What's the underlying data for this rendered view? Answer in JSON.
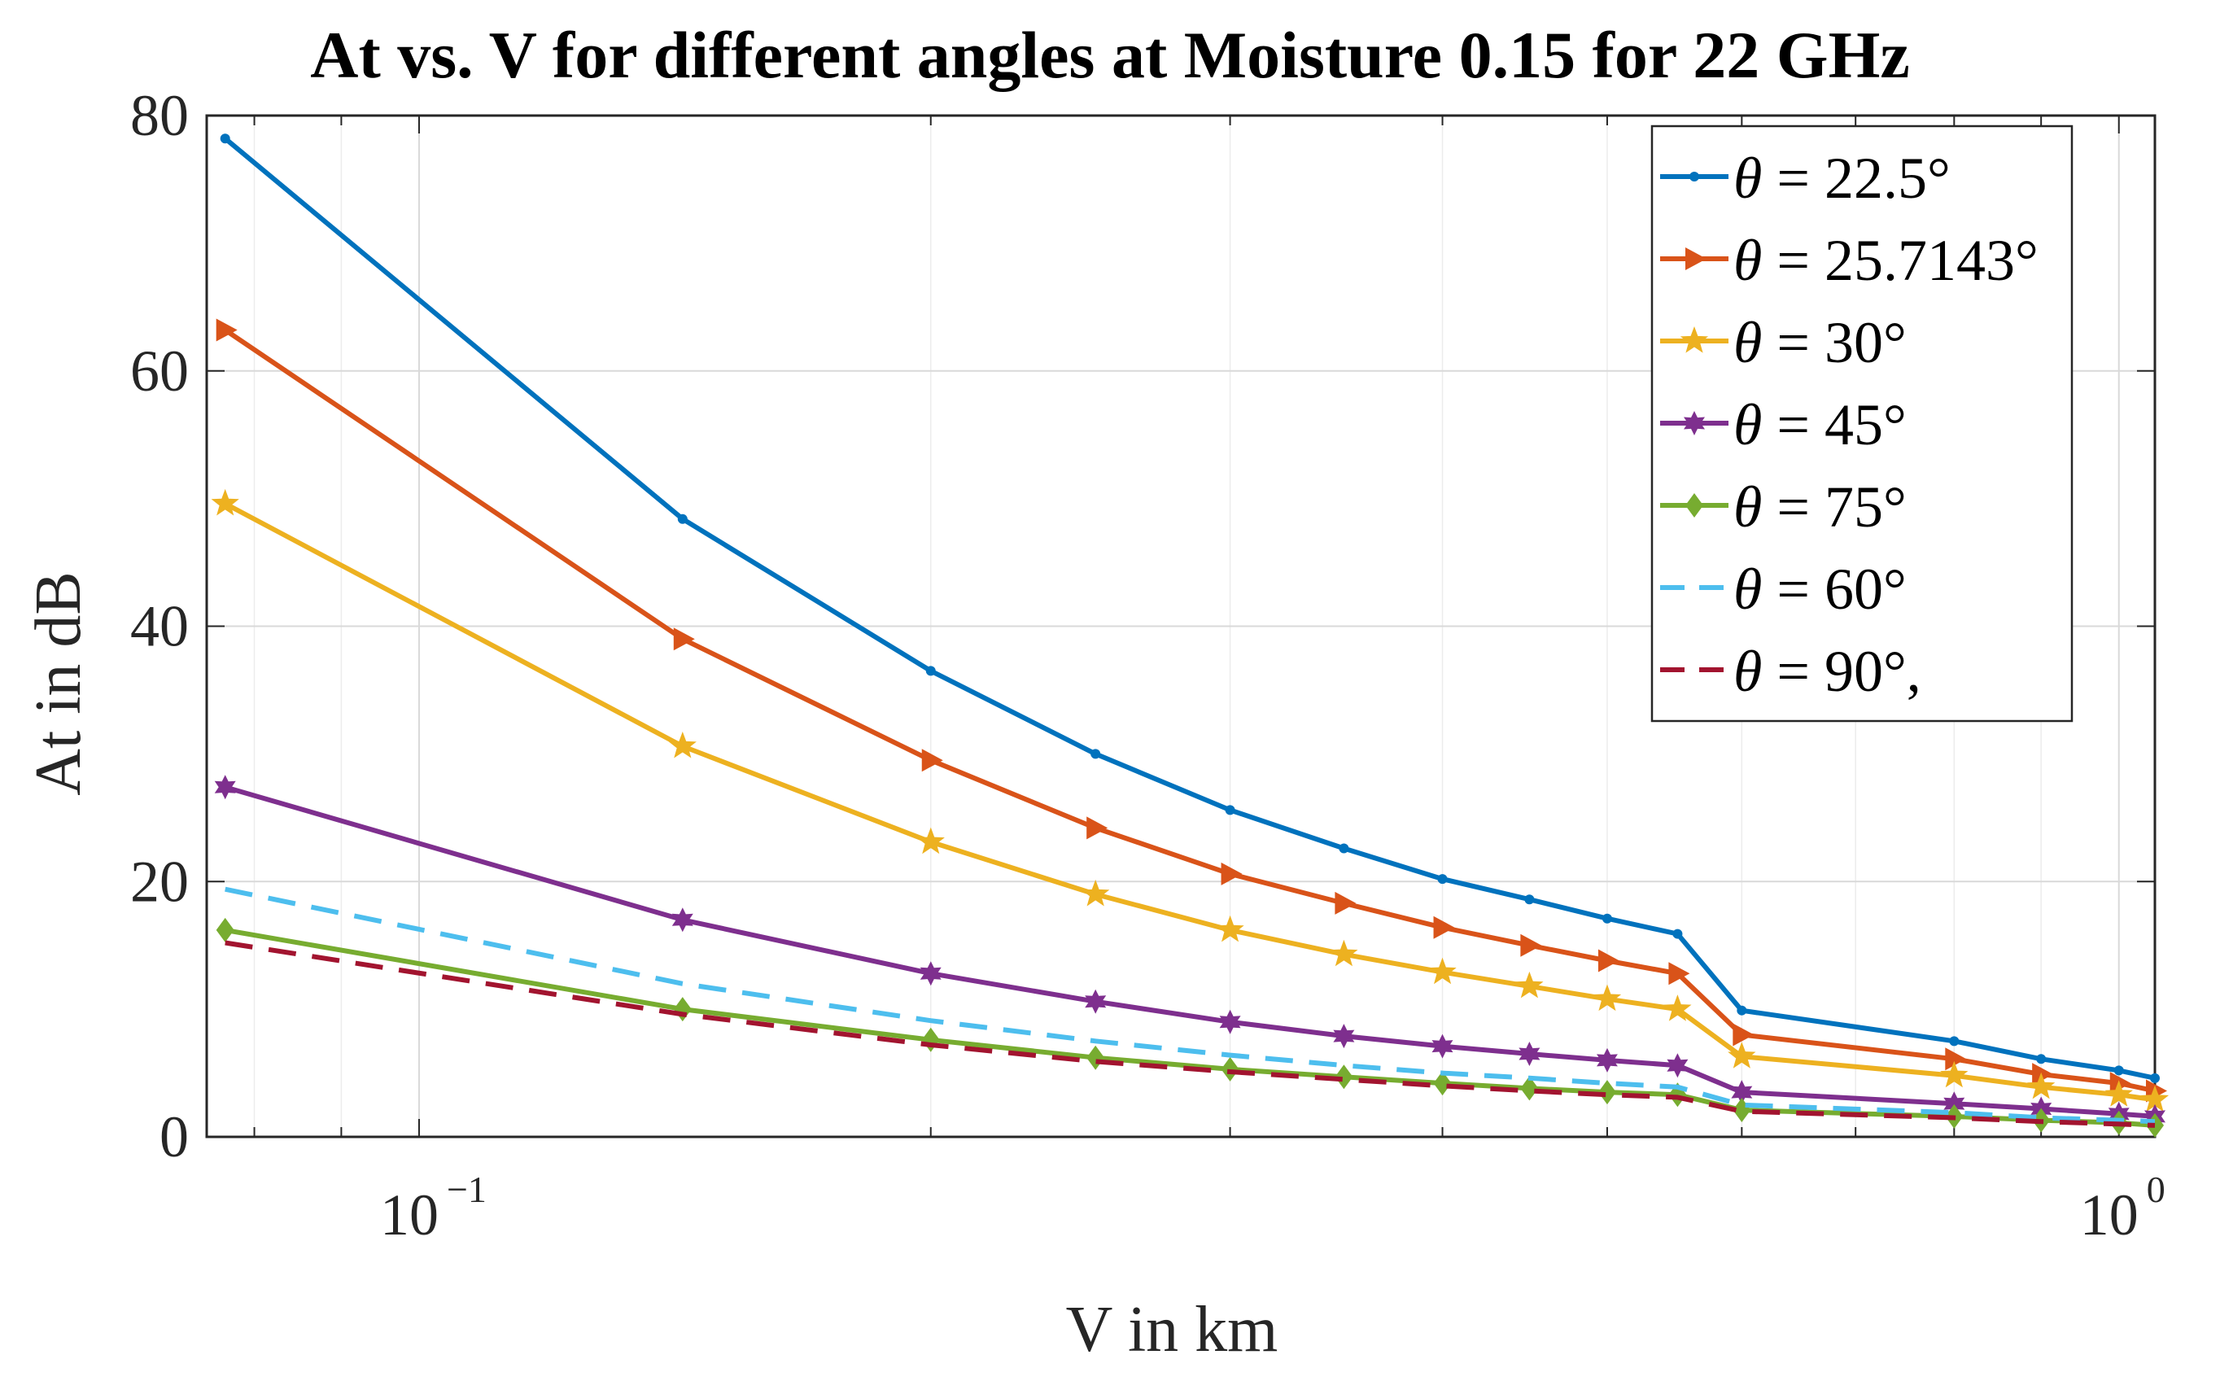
{
  "chart_data": {
    "type": "line",
    "title": "At vs. V for different angles at Moisture 0.15 for 22 GHz",
    "xlabel": "V in km",
    "ylabel": "At in dB",
    "xscale": "log",
    "xlim": [
      0.075,
      1.05
    ],
    "ylim": [
      0,
      80
    ],
    "grid": true,
    "legend_position": "top-right",
    "xticks": [
      {
        "value": 0.1,
        "base": "10",
        "exp": "−1"
      },
      {
        "value": 1.0,
        "base": "10",
        "exp": "0"
      }
    ],
    "yticks": [
      {
        "value": 0,
        "label": "0"
      },
      {
        "value": 20,
        "label": "20"
      },
      {
        "value": 40,
        "label": "40"
      },
      {
        "value": 60,
        "label": "60"
      },
      {
        "value": 80,
        "label": "80"
      }
    ],
    "x": [
      0.0769,
      0.1429,
      0.2,
      0.25,
      0.3,
      0.35,
      0.4,
      0.45,
      0.5,
      0.55,
      0.6,
      0.8,
      0.9,
      1.0,
      1.05
    ],
    "series": [
      {
        "name": "θ = 22.5°",
        "theta": "22.5",
        "color": "#0072BD",
        "dash": false,
        "marker": "point",
        "values": [
          78.2,
          48.4,
          36.5,
          30.0,
          25.6,
          22.6,
          20.2,
          18.6,
          17.1,
          15.9,
          9.9,
          7.5,
          6.1,
          5.2,
          4.6
        ]
      },
      {
        "name": "θ = 25.7143°",
        "theta": "25.7143",
        "color": "#D95319",
        "dash": false,
        "marker": "triangle-right",
        "values": [
          63.2,
          39.0,
          29.5,
          24.2,
          20.6,
          18.3,
          16.4,
          15.0,
          13.8,
          12.8,
          8.0,
          6.1,
          4.9,
          4.2,
          3.6
        ]
      },
      {
        "name": "θ = 30°",
        "theta": "30",
        "color": "#EDB120",
        "dash": false,
        "marker": "star",
        "values": [
          49.6,
          30.6,
          23.1,
          19.0,
          16.2,
          14.3,
          12.9,
          11.8,
          10.8,
          10.0,
          6.3,
          4.8,
          3.9,
          3.3,
          2.9
        ]
      },
      {
        "name": "θ = 45°",
        "theta": "45",
        "color": "#7E2F8E",
        "dash": false,
        "marker": "hexagram",
        "values": [
          27.4,
          17.0,
          12.8,
          10.6,
          9.0,
          7.9,
          7.1,
          6.5,
          6.0,
          5.6,
          3.5,
          2.6,
          2.2,
          1.8,
          1.6
        ]
      },
      {
        "name": "θ = 75°",
        "theta": "75",
        "color": "#77AC30",
        "dash": false,
        "marker": "diamond",
        "values": [
          16.2,
          10.0,
          7.6,
          6.2,
          5.3,
          4.7,
          4.2,
          3.8,
          3.5,
          3.3,
          2.1,
          1.6,
          1.3,
          1.1,
          0.9
        ]
      },
      {
        "name": "θ = 60°",
        "theta": "60",
        "color": "#4DBEEE",
        "dash": true,
        "marker": "none",
        "values": [
          19.4,
          12.0,
          9.1,
          7.5,
          6.4,
          5.6,
          5.0,
          4.6,
          4.2,
          3.9,
          2.5,
          1.9,
          1.5,
          1.3,
          1.2
        ]
      },
      {
        "name": "θ = 90°,",
        "theta": "90",
        "suffix": ",",
        "color": "#A2142F",
        "dash": true,
        "marker": "none",
        "values": [
          15.2,
          9.6,
          7.2,
          5.9,
          5.1,
          4.5,
          4.0,
          3.6,
          3.3,
          3.1,
          2.0,
          1.5,
          1.2,
          1.0,
          0.9
        ]
      }
    ]
  }
}
